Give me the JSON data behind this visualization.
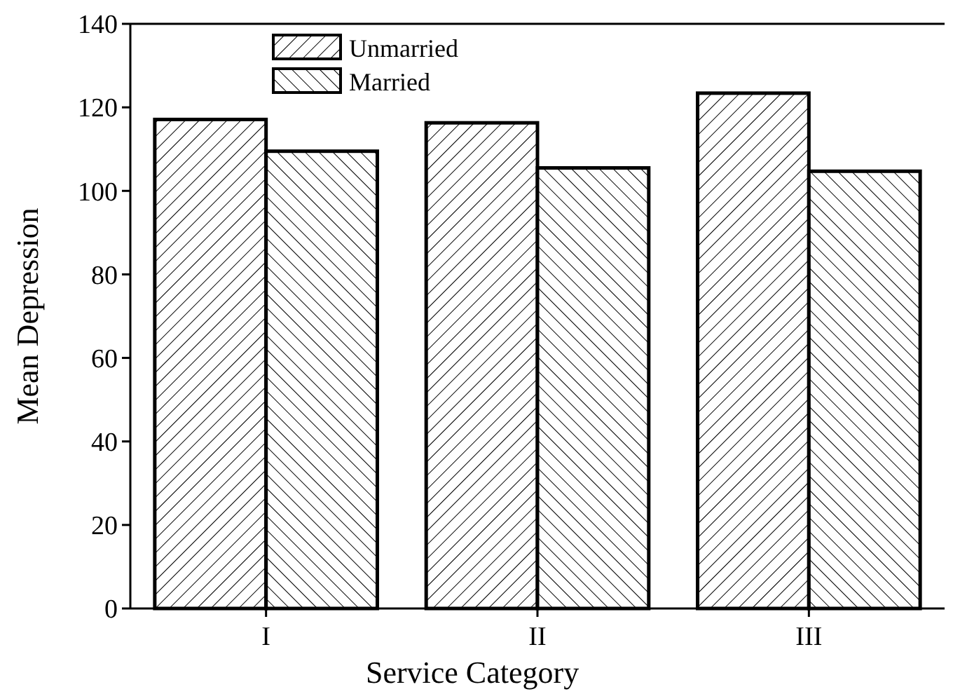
{
  "chart_data": {
    "type": "bar",
    "xlabel": "Service Category",
    "ylabel": "Mean Depression",
    "categories": [
      "I",
      "II",
      "III"
    ],
    "series": [
      {
        "name": "Unmarried",
        "color": "#000000",
        "values": [
          117.1,
          116.3,
          123.4
        ]
      },
      {
        "name": "Married",
        "color": "#000000",
        "values": [
          109.5,
          105.5,
          104.7
        ]
      }
    ],
    "ylim": [
      0,
      140
    ],
    "yticks": [
      0,
      20,
      40,
      60,
      80,
      100,
      120,
      140
    ],
    "grid": false,
    "legend": "top left"
  }
}
